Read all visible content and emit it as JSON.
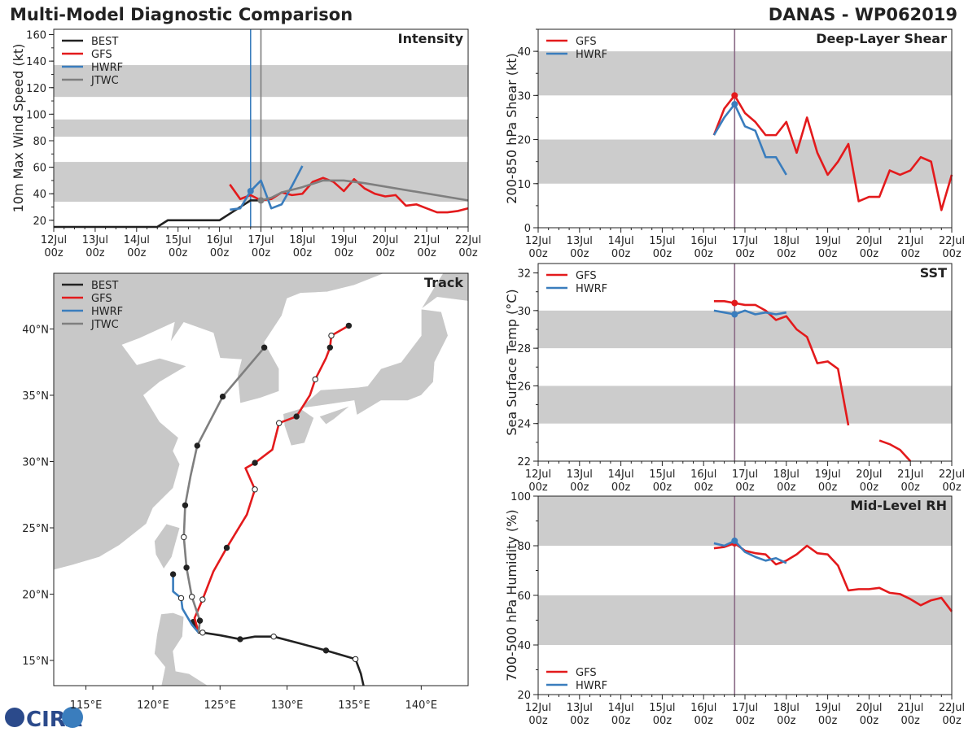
{
  "header": {
    "title": "Multi-Model Diagnostic Comparison",
    "storm": "DANAS - WP062019"
  },
  "colors": {
    "BEST": "#222222",
    "GFS": "#e31a1c",
    "HWRF": "#3a7dbd",
    "JTWC": "#7f7f7f",
    "band": "#cccccc"
  },
  "logo": {
    "text": "CIRA"
  },
  "time_axis": {
    "ticks": [
      "12Jul",
      "13Jul",
      "14Jul",
      "15Jul",
      "16Jul",
      "17Jul",
      "18Jul",
      "19Jul",
      "20Jul",
      "21Jul",
      "22Jul"
    ],
    "hour_label": "00z"
  },
  "chart_data": [
    {
      "id": "intensity",
      "type": "line",
      "title": "Intensity",
      "ylabel": "10m Max Wind Speed (kt)",
      "ylim": [
        15,
        164
      ],
      "yticks": [
        20,
        40,
        60,
        80,
        100,
        120,
        140,
        160
      ],
      "bands": [
        [
          34,
          64
        ],
        [
          83,
          96
        ],
        [
          113,
          137
        ]
      ],
      "legend": "top-left",
      "vlines": [
        {
          "series": "HWRF",
          "t": "16/18"
        },
        {
          "series": "JTWC",
          "t": "17/00"
        }
      ],
      "series": [
        {
          "name": "BEST",
          "points": [
            [
              "12/00",
              15
            ],
            [
              "14/12",
              15
            ],
            [
              "14/18",
              20
            ],
            [
              "16/00",
              20
            ],
            [
              "16/06",
              25
            ],
            [
              "16/12",
              30
            ],
            [
              "16/18",
              35
            ],
            [
              "17/00",
              35
            ]
          ]
        },
        {
          "name": "GFS",
          "points": [
            [
              "16/06",
              47
            ],
            [
              "16/12",
              36
            ],
            [
              "16/18",
              39
            ],
            [
              "17/00",
              35
            ],
            [
              "17/06",
              36
            ],
            [
              "17/12",
              41
            ],
            [
              "17/18",
              39
            ],
            [
              "18/00",
              40
            ],
            [
              "18/06",
              49
            ],
            [
              "18/12",
              52
            ],
            [
              "18/18",
              49
            ],
            [
              "19/00",
              42
            ],
            [
              "19/06",
              51
            ],
            [
              "19/12",
              44
            ],
            [
              "19/18",
              40
            ],
            [
              "20/00",
              38
            ],
            [
              "20/06",
              39
            ],
            [
              "20/12",
              31
            ],
            [
              "20/18",
              32
            ],
            [
              "21/00",
              29
            ],
            [
              "21/06",
              26
            ],
            [
              "21/12",
              26
            ],
            [
              "21/18",
              27
            ],
            [
              "22/00",
              29
            ]
          ]
        },
        {
          "name": "HWRF",
          "marker": "16/18",
          "points": [
            [
              "16/06",
              28
            ],
            [
              "16/12",
              29
            ],
            [
              "16/18",
              42
            ],
            [
              "17/00",
              50
            ],
            [
              "17/06",
              29
            ],
            [
              "17/12",
              32
            ],
            [
              "17/18",
              46
            ],
            [
              "18/00",
              61
            ]
          ]
        },
        {
          "name": "JTWC",
          "marker": "17/00",
          "points": [
            [
              "17/00",
              35
            ],
            [
              "17/06",
              37
            ],
            [
              "17/12",
              41
            ],
            [
              "18/00",
              45
            ],
            [
              "18/12",
              50
            ],
            [
              "19/00",
              50
            ],
            [
              "19/12",
              48
            ],
            [
              "22/00",
              35
            ]
          ]
        }
      ]
    },
    {
      "id": "shear",
      "type": "line",
      "title": "Deep-Layer Shear",
      "ylabel": "200-850 hPa Shear (kt)",
      "ylim": [
        0,
        45
      ],
      "yticks": [
        0,
        10,
        20,
        30,
        40
      ],
      "bands": [
        [
          10,
          20
        ],
        [
          30,
          40
        ]
      ],
      "legend": "top-left",
      "vlines": [
        {
          "series": "analysis",
          "t": "16/18"
        }
      ],
      "series": [
        {
          "name": "GFS",
          "marker": "16/18",
          "points": [
            [
              "16/06",
              21
            ],
            [
              "16/12",
              27
            ],
            [
              "16/18",
              30
            ],
            [
              "17/00",
              26
            ],
            [
              "17/06",
              24
            ],
            [
              "17/12",
              21
            ],
            [
              "17/18",
              21
            ],
            [
              "18/00",
              24
            ],
            [
              "18/06",
              17
            ],
            [
              "18/12",
              25
            ],
            [
              "18/18",
              17
            ],
            [
              "19/00",
              12
            ],
            [
              "19/06",
              15
            ],
            [
              "19/12",
              19
            ],
            [
              "19/18",
              6
            ],
            [
              "20/00",
              7
            ],
            [
              "20/06",
              7
            ],
            [
              "20/12",
              13
            ],
            [
              "20/18",
              12
            ],
            [
              "21/00",
              13
            ],
            [
              "21/06",
              16
            ],
            [
              "21/12",
              15
            ],
            [
              "21/18",
              4
            ],
            [
              "22/00",
              12
            ]
          ]
        },
        {
          "name": "HWRF",
          "marker": "16/18",
          "points": [
            [
              "16/06",
              21
            ],
            [
              "16/12",
              25
            ],
            [
              "16/18",
              28
            ],
            [
              "17/00",
              23
            ],
            [
              "17/06",
              22
            ],
            [
              "17/12",
              16
            ],
            [
              "17/18",
              16
            ],
            [
              "18/00",
              12
            ]
          ]
        }
      ]
    },
    {
      "id": "sst",
      "type": "line",
      "title": "SST",
      "ylabel": "Sea Surface Temp (°C)",
      "ylim": [
        22,
        32.5
      ],
      "yticks": [
        22,
        24,
        26,
        28,
        30,
        32
      ],
      "bands": [
        [
          24,
          26
        ],
        [
          28,
          30
        ]
      ],
      "legend": "top-left",
      "vlines": [
        {
          "series": "analysis",
          "t": "16/18"
        }
      ],
      "series": [
        {
          "name": "GFS",
          "marker": "16/18",
          "points": [
            [
              "16/06",
              30.5
            ],
            [
              "16/12",
              30.5
            ],
            [
              "16/18",
              30.4
            ],
            [
              "17/00",
              30.3
            ],
            [
              "17/06",
              30.3
            ],
            [
              "17/12",
              30.0
            ],
            [
              "17/18",
              29.5
            ],
            [
              "18/00",
              29.7
            ],
            [
              "18/06",
              29.0
            ],
            [
              "18/12",
              28.6
            ],
            [
              "18/18",
              27.2
            ],
            [
              "19/00",
              27.3
            ],
            [
              "19/06",
              26.9
            ],
            [
              "19/12",
              23.9
            ],
            null,
            [
              "20/06",
              23.1
            ],
            [
              "20/12",
              22.9
            ],
            [
              "20/18",
              22.6
            ],
            [
              "21/00",
              22.0
            ]
          ]
        },
        {
          "name": "HWRF",
          "marker": "16/18",
          "points": [
            [
              "16/06",
              30.0
            ],
            [
              "16/12",
              29.9
            ],
            [
              "16/18",
              29.8
            ],
            [
              "17/00",
              30.0
            ],
            [
              "17/06",
              29.8
            ],
            [
              "17/12",
              29.9
            ],
            [
              "17/18",
              29.8
            ],
            [
              "18/00",
              29.9
            ]
          ]
        }
      ]
    },
    {
      "id": "rh",
      "type": "line",
      "title": "Mid-Level RH",
      "ylabel": "700-500 hPa Humidity (%)",
      "ylim": [
        20,
        100
      ],
      "yticks": [
        20,
        40,
        60,
        80,
        100
      ],
      "bands": [
        [
          40,
          60
        ],
        [
          80,
          100
        ]
      ],
      "legend": "bottom-left",
      "vlines": [
        {
          "series": "analysis",
          "t": "16/18"
        }
      ],
      "series": [
        {
          "name": "GFS",
          "marker": "16/18",
          "points": [
            [
              "16/06",
              79
            ],
            [
              "16/12",
              79.5
            ],
            [
              "16/18",
              81
            ],
            [
              "17/00",
              78
            ],
            [
              "17/06",
              77
            ],
            [
              "17/12",
              76.5
            ],
            [
              "17/18",
              72.5
            ],
            [
              "18/00",
              74
            ],
            [
              "18/06",
              76.5
            ],
            [
              "18/12",
              80
            ],
            [
              "18/18",
              77
            ],
            [
              "19/00",
              76.5
            ],
            [
              "19/06",
              72
            ],
            [
              "19/12",
              62
            ],
            [
              "19/18",
              62.5
            ],
            [
              "20/00",
              62.5
            ],
            [
              "20/06",
              63
            ],
            [
              "20/12",
              61
            ],
            [
              "20/18",
              60.5
            ],
            [
              "21/00",
              58.5
            ],
            [
              "21/06",
              56
            ],
            [
              "21/12",
              58
            ],
            [
              "21/18",
              59
            ],
            [
              "22/00",
              53.5
            ]
          ]
        },
        {
          "name": "HWRF",
          "marker": "16/18",
          "points": [
            [
              "16/06",
              81
            ],
            [
              "16/12",
              80
            ],
            [
              "16/18",
              82
            ],
            [
              "17/00",
              77.5
            ],
            [
              "17/06",
              75.5
            ],
            [
              "17/12",
              74
            ],
            [
              "17/18",
              75
            ],
            [
              "18/00",
              73
            ]
          ]
        }
      ]
    },
    {
      "id": "track",
      "type": "map",
      "title": "Track",
      "legend": "top-left",
      "xlim": [
        112.6,
        143.5
      ],
      "ylim": [
        13.1,
        44.2
      ],
      "xticks": [
        {
          "v": 115,
          "label": "115°E"
        },
        {
          "v": 120,
          "label": "120°E"
        },
        {
          "v": 125,
          "label": "125°E"
        },
        {
          "v": 130,
          "label": "130°E"
        },
        {
          "v": 135,
          "label": "135°E"
        },
        {
          "v": 140,
          "label": "140°E"
        }
      ],
      "yticks": [
        {
          "v": 15,
          "label": "15°N"
        },
        {
          "v": 20,
          "label": "20°N"
        },
        {
          "v": 25,
          "label": "25°N"
        },
        {
          "v": 30,
          "label": "30°N"
        },
        {
          "v": 35,
          "label": "35°N"
        },
        {
          "v": 40,
          "label": "40°N"
        }
      ],
      "series": [
        {
          "name": "BEST",
          "points": [
            [
              135.7,
              13.1
            ],
            [
              135.5,
              14.0
            ],
            [
              135.1,
              15.1,
              "open"
            ],
            [
              132.9,
              15.75,
              "dot"
            ],
            [
              130.9,
              16.3
            ],
            [
              129.0,
              16.8,
              "open"
            ],
            [
              127.6,
              16.8
            ],
            [
              126.5,
              16.6,
              "dot"
            ],
            [
              125.0,
              16.9
            ],
            [
              123.7,
              17.1,
              "open"
            ],
            [
              123.4,
              17.1
            ],
            [
              123.0,
              17.9,
              "dot"
            ]
          ]
        },
        {
          "name": "GFS",
          "points": [
            [
              123.4,
              17.1
            ],
            [
              123.1,
              18.2
            ],
            [
              123.7,
              19.6,
              "open"
            ],
            [
              124.5,
              21.7
            ],
            [
              125.5,
              23.5,
              "dot"
            ],
            [
              127.0,
              26.0
            ],
            [
              127.6,
              27.9,
              "open"
            ],
            [
              126.9,
              29.5
            ],
            [
              127.6,
              29.9,
              "dot"
            ],
            [
              128.9,
              30.9
            ],
            [
              129.4,
              32.9,
              "open"
            ],
            [
              130.7,
              33.4,
              "dot"
            ],
            [
              131.7,
              35.0
            ],
            [
              132.1,
              36.2,
              "open"
            ],
            [
              132.9,
              37.8
            ],
            [
              133.2,
              38.6,
              "dot"
            ],
            [
              133.3,
              39.5,
              "open"
            ],
            [
              134.6,
              40.25,
              "dot"
            ]
          ]
        },
        {
          "name": "HWRF",
          "points": [
            [
              123.4,
              17.1
            ],
            [
              122.9,
              17.7
            ],
            [
              122.2,
              18.9
            ],
            [
              122.1,
              19.7,
              "open"
            ],
            [
              121.5,
              20.2
            ],
            [
              121.5,
              21.5,
              "dot"
            ]
          ]
        },
        {
          "name": "JTWC",
          "points": [
            [
              123.4,
              17.1
            ],
            [
              123.5,
              18.0,
              "dot"
            ],
            [
              122.9,
              19.8,
              "open"
            ],
            [
              122.5,
              22.0,
              "dot"
            ],
            [
              122.3,
              24.3,
              "open"
            ],
            [
              122.4,
              26.7,
              "dot"
            ],
            [
              122.8,
              28.9
            ],
            [
              123.3,
              31.2,
              "dot"
            ],
            [
              125.2,
              34.9,
              "dot"
            ],
            [
              128.3,
              38.6,
              "dot"
            ]
          ]
        }
      ]
    }
  ]
}
